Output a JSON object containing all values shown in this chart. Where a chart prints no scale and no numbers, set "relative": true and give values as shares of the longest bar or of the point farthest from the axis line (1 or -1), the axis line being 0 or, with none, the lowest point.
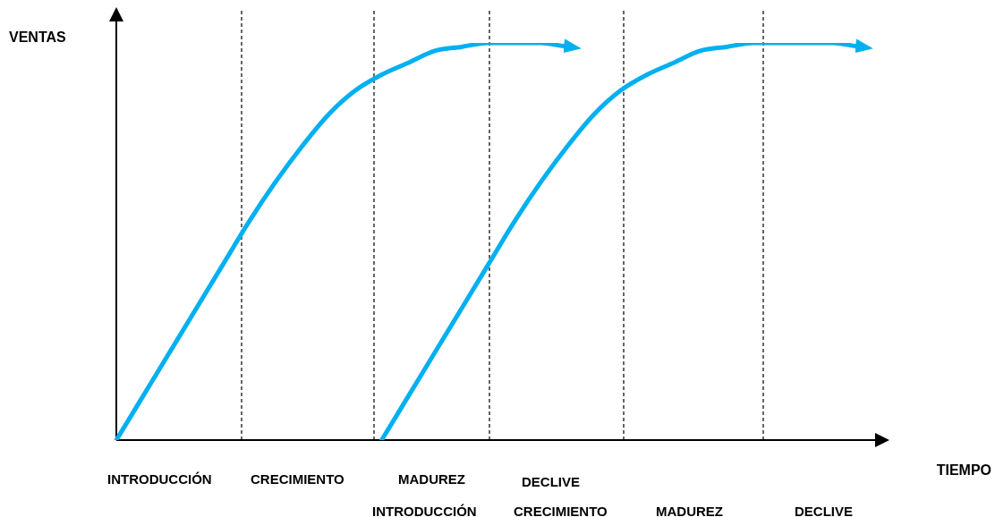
{
  "chart_data": {
    "type": "line",
    "relative": true,
    "xlabel": "TIEMPO",
    "ylabel": "VENTAS",
    "categories": [
      null,
      null,
      null,
      null,
      null,
      null,
      null,
      null,
      null,
      null,
      null,
      null,
      null,
      null,
      null,
      null,
      null,
      null,
      null,
      null,
      null,
      null,
      null,
      null,
      null,
      null,
      null,
      null,
      null,
      null
    ],
    "series": [
      {
        "color": "#00b0f0",
        "values": [
          0,
          0.11,
          0.22,
          0.33,
          0.44,
          0.55,
          0.65,
          0.74,
          0.82,
          0.88,
          0.92,
          0.95,
          0.98,
          0.99,
          1,
          1,
          1,
          0.99,
          null,
          null,
          null,
          null,
          null,
          null,
          null,
          null,
          null,
          null,
          null,
          null
        ]
      },
      {
        "color": "#00b0f0",
        "values": [
          null,
          null,
          null,
          null,
          null,
          null,
          null,
          null,
          null,
          null,
          0,
          0.11,
          0.22,
          0.33,
          0.44,
          0.55,
          0.65,
          0.74,
          0.82,
          0.88,
          0.92,
          0.95,
          0.98,
          0.99,
          1,
          1,
          1,
          1,
          0.99,
          null
        ]
      }
    ],
    "annotations": [
      "INTRODUCCIÓN",
      "CRECIMIENTO",
      "MADUREZ",
      "DECLIVE",
      "INTRODUCCIÓN",
      "CRECIMIENTO",
      "MADUREZ",
      "DECLIVE"
    ],
    "legend": false,
    "marker": "none",
    "line_style": "solid"
  }
}
